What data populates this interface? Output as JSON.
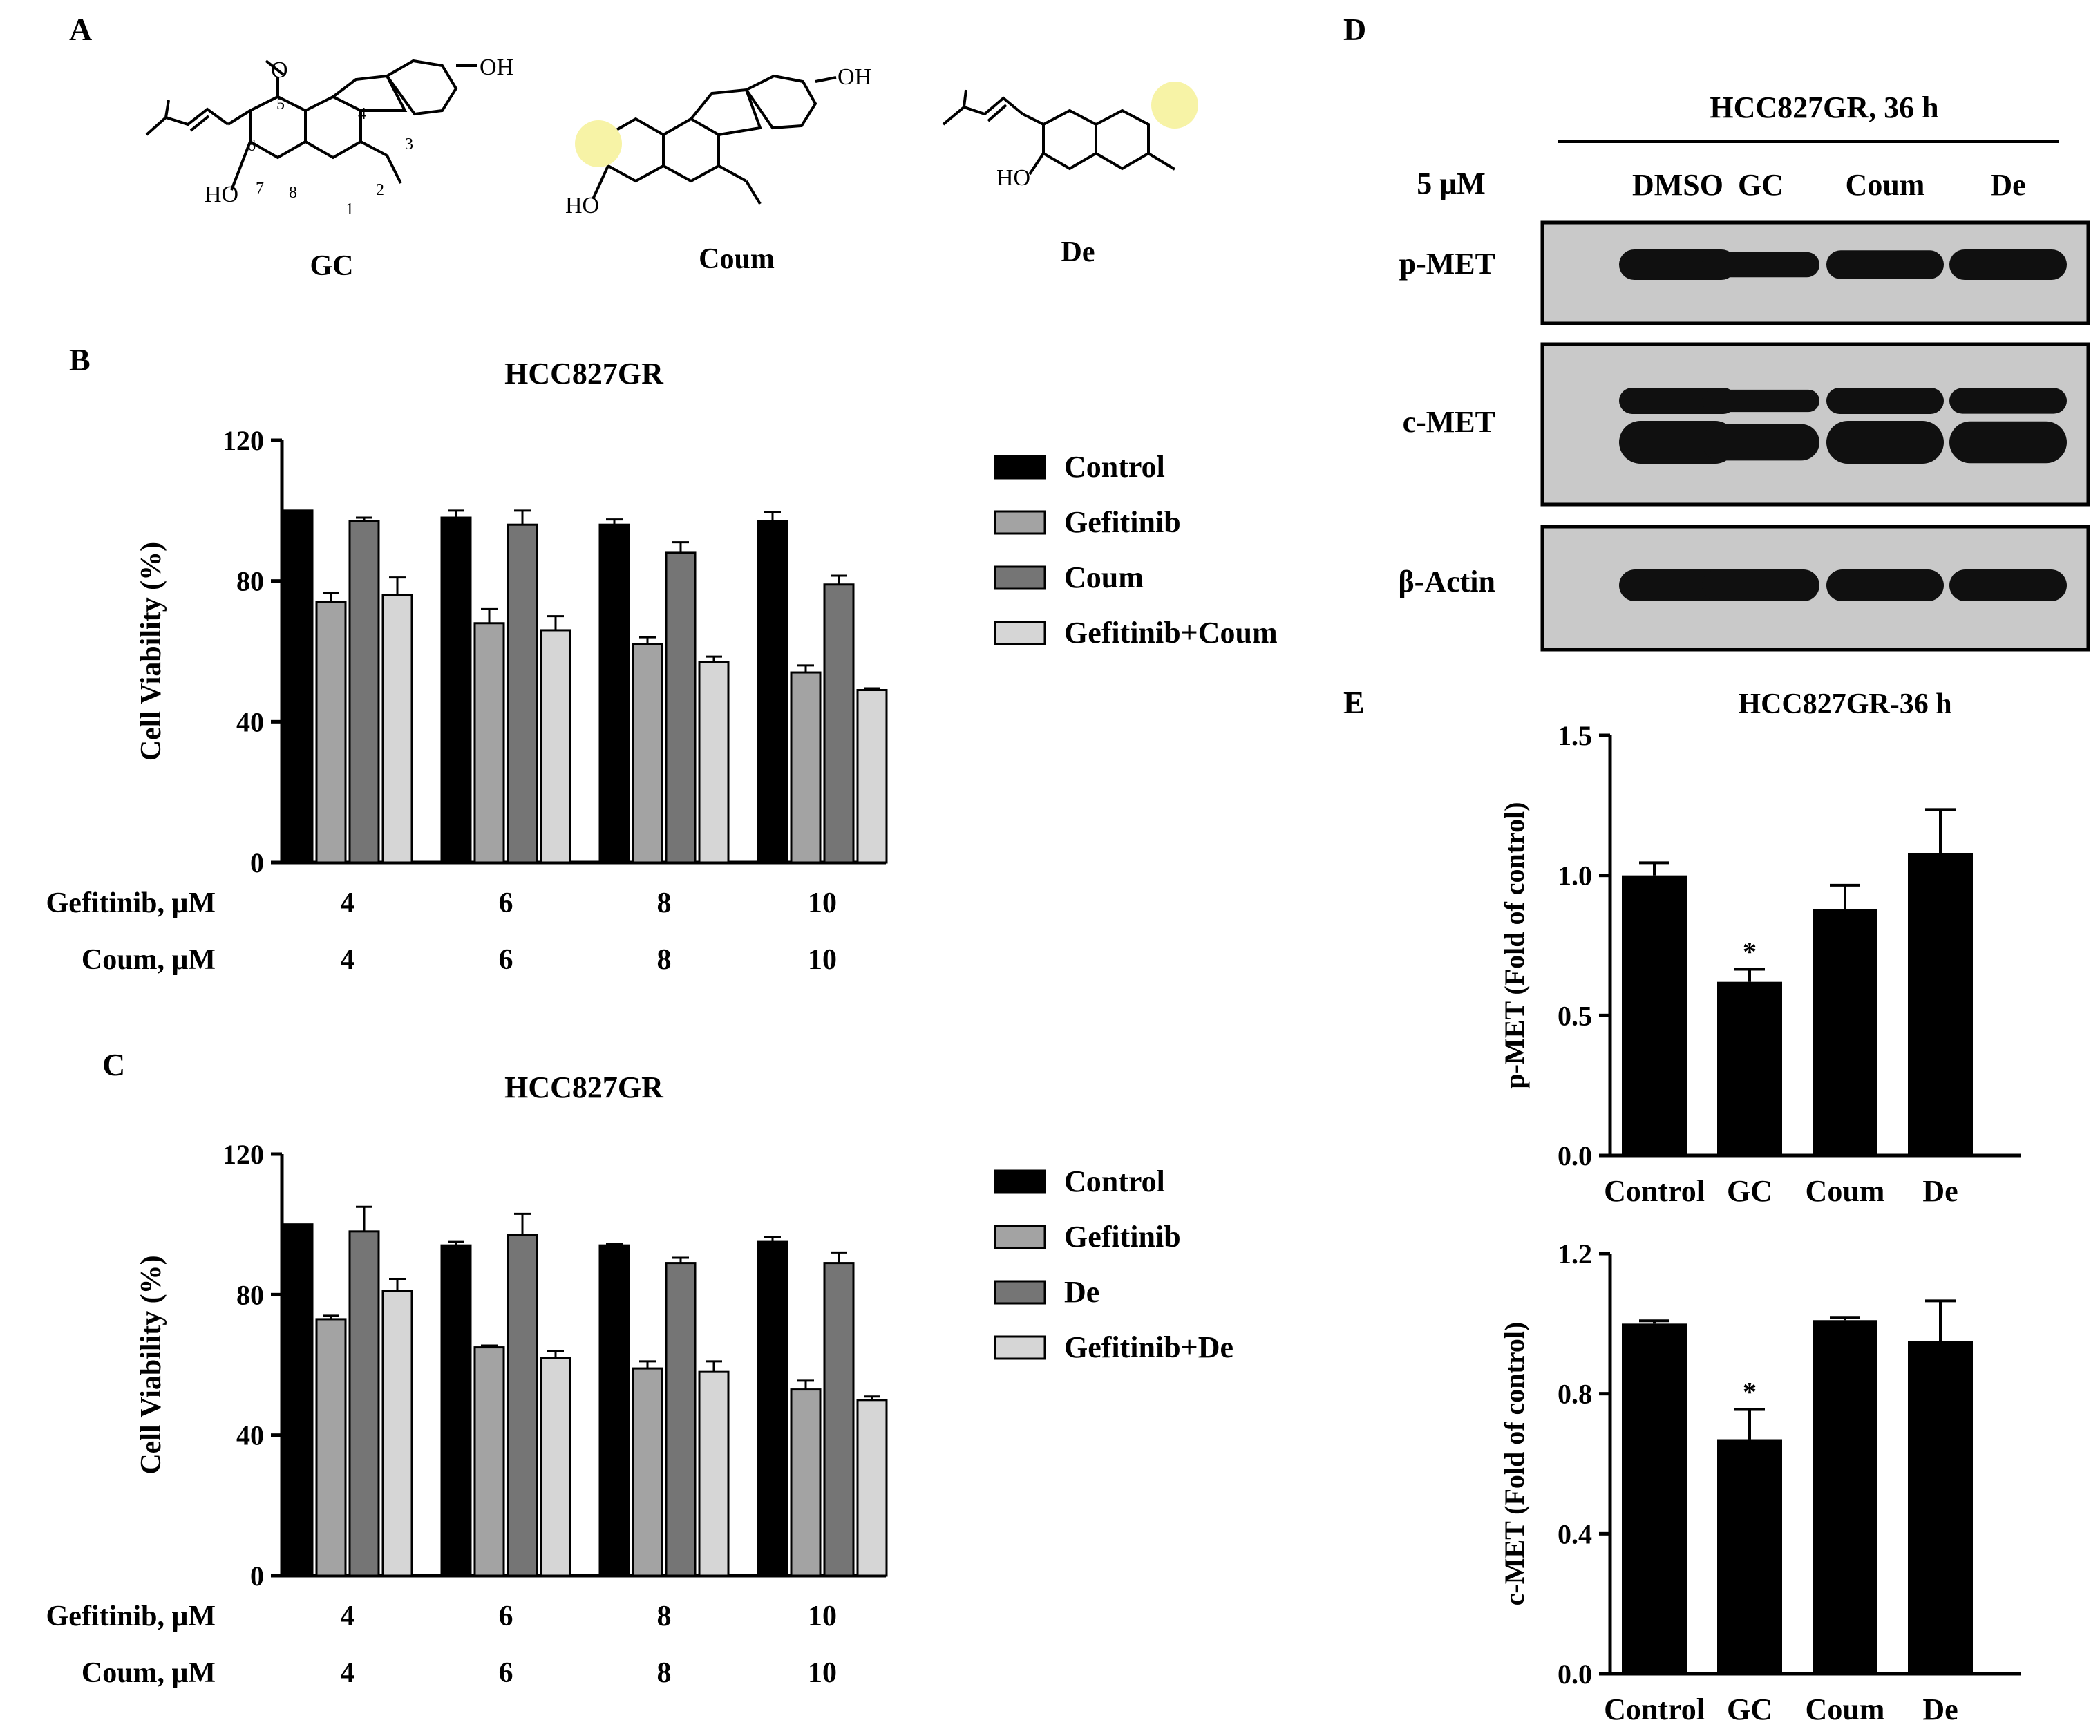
{
  "panels": {
    "A": {
      "letter": "A",
      "compounds": [
        {
          "name": "GC",
          "substituents": {
            "methoxy": "O",
            "hydroxyl_top": "OH",
            "hydroxyl_left": "HO"
          },
          "atom_numbers": [
            "5",
            "4",
            "3",
            "6",
            "2",
            "7",
            "8",
            "1"
          ]
        },
        {
          "name": "Coum",
          "substituents": {
            "hydroxyl_top": "OH",
            "hydroxyl_left": "HO"
          }
        },
        {
          "name": "De",
          "substituents": {
            "hydroxyl_left": "HO"
          }
        }
      ],
      "highlight_color": "#f7f3a6"
    },
    "B": {
      "letter": "B"
    },
    "C": {
      "letter": "C"
    },
    "D": {
      "letter": "D",
      "header": "HCC827GR, 36 h",
      "dose_label": "5 μM",
      "lanes": [
        "DMSO",
        "GC",
        "Coum",
        "De"
      ],
      "blots": [
        {
          "label": "p-MET",
          "band_strength": [
            1.0,
            0.62,
            0.88,
            1.08
          ]
        },
        {
          "label": "c-MET",
          "band_strength": [
            1.0,
            0.67,
            1.01,
            0.95
          ]
        },
        {
          "label": "β-Actin",
          "band_strength": [
            1.0,
            1.0,
            1.0,
            1.0
          ]
        }
      ]
    },
    "E": {
      "letter": "E"
    }
  },
  "chart_data": [
    {
      "panel": "B",
      "type": "bar",
      "title": "HCC827GR",
      "ylabel": "Cell Viability (%)",
      "ylim": [
        0,
        120
      ],
      "yticks": [
        "0",
        "40",
        "80",
        "120"
      ],
      "categories": [
        "4",
        "6",
        "8",
        "10"
      ],
      "row_labels": [
        {
          "label": "Gefitinib, μM",
          "values": [
            "4",
            "6",
            "8",
            "10"
          ]
        },
        {
          "label": "Coum, μM",
          "values": [
            "4",
            "6",
            "8",
            "10"
          ]
        }
      ],
      "legend_position": "right",
      "series": [
        {
          "name": "Control",
          "color": "#000000",
          "values": [
            100,
            98,
            96,
            97
          ],
          "errors": [
            0,
            2,
            1.5,
            2.5
          ]
        },
        {
          "name": "Gefitinib",
          "color": "#a3a3a3",
          "values": [
            74,
            68,
            62,
            54
          ],
          "errors": [
            2.5,
            4,
            2,
            2
          ]
        },
        {
          "name": "Coum",
          "color": "#757575",
          "values": [
            97,
            96,
            88,
            79
          ],
          "errors": [
            1,
            4,
            3,
            2.5
          ]
        },
        {
          "name": "Gefitinib+Coum",
          "color": "#d6d6d6",
          "values": [
            76,
            66,
            57,
            49
          ],
          "errors": [
            5,
            4,
            1.5,
            0.5
          ]
        }
      ]
    },
    {
      "panel": "C",
      "type": "bar",
      "title": "HCC827GR",
      "ylabel": "Cell Viability (%)",
      "ylim": [
        0,
        120
      ],
      "yticks": [
        "0",
        "40",
        "80",
        "120"
      ],
      "categories": [
        "4",
        "6",
        "8",
        "10"
      ],
      "row_labels": [
        {
          "label": "Gefitinib, μM",
          "values": [
            "4",
            "6",
            "8",
            "10"
          ]
        },
        {
          "label": "Coum, μM",
          "values": [
            "4",
            "6",
            "8",
            "10"
          ]
        }
      ],
      "legend_position": "right",
      "series": [
        {
          "name": "Control",
          "color": "#000000",
          "values": [
            100,
            94,
            94,
            95
          ],
          "errors": [
            0,
            1,
            0.5,
            1.5
          ]
        },
        {
          "name": "Gefitinib",
          "color": "#a3a3a3",
          "values": [
            73,
            65,
            59,
            53
          ],
          "errors": [
            1,
            0.5,
            2,
            2.5
          ]
        },
        {
          "name": "De",
          "color": "#757575",
          "values": [
            98,
            97,
            89,
            89
          ],
          "errors": [
            7,
            6,
            1.5,
            3
          ]
        },
        {
          "name": "Gefitinib+De",
          "color": "#d6d6d6",
          "values": [
            81,
            62,
            58,
            50
          ],
          "errors": [
            3.5,
            2,
            3,
            1
          ]
        }
      ]
    },
    {
      "panel": "E",
      "type": "bar",
      "title": "HCC827GR-36 h",
      "ylabel": "p-MET (Fold of control)",
      "ylim": [
        0,
        1.5
      ],
      "yticks": [
        "0.0",
        "0.5",
        "1.0",
        "1.5"
      ],
      "categories": [
        "Control",
        "GC",
        "Coum",
        "De"
      ],
      "series": [
        {
          "name": "",
          "color": "#000000",
          "values": [
            1.0,
            0.62,
            0.88,
            1.08
          ],
          "errors": [
            0.045,
            0.045,
            0.085,
            0.155
          ]
        }
      ],
      "annotations": [
        {
          "category": "GC",
          "text": "*"
        }
      ]
    },
    {
      "panel": "E",
      "type": "bar",
      "title": "",
      "ylabel": "c-MET (Fold of control)",
      "ylim": [
        0,
        1.2
      ],
      "yticks": [
        "0.0",
        "0.4",
        "0.8",
        "1.2"
      ],
      "categories": [
        "Control",
        "GC",
        "Coum",
        "De"
      ],
      "series": [
        {
          "name": "",
          "color": "#000000",
          "values": [
            1.0,
            0.67,
            1.01,
            0.95
          ],
          "errors": [
            0.008,
            0.085,
            0.008,
            0.115
          ]
        }
      ],
      "annotations": [
        {
          "category": "GC",
          "text": "*"
        }
      ]
    }
  ]
}
